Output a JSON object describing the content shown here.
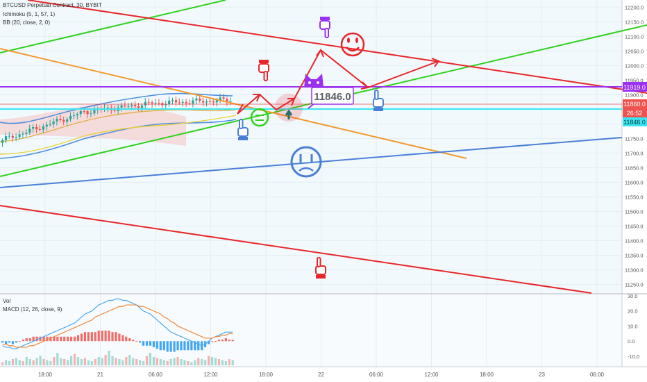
{
  "header": {
    "symbol_line": "BTCUSD Perpetual Contract, 30, BYBIT",
    "indicator_ichimoku": "Ichimoku (5, 1, 57, 1)",
    "indicator_bb": "BB (20, close, 2, 0)"
  },
  "sub_header": {
    "vol": "Vol",
    "macd": "MACD (12, 26, close, 9)"
  },
  "callout": {
    "value": "11846.0"
  },
  "price_tags": {
    "purple": "11919.0",
    "red": "11860.0",
    "timer": "26:52",
    "cyan": "11846.0"
  },
  "colors": {
    "background": "#ffffff",
    "plot_tint": "#f1f9fd",
    "up": "#26a69a",
    "down": "#ef5350",
    "red_line": "#e8262a",
    "green_line": "#2fd21c",
    "orange_line": "#f49a2e",
    "blue_line": "#4a7fd6",
    "purple_line": "#9a31f0",
    "cyan_line": "#39e6f2",
    "bb_band": "#4f8fe0",
    "cloud": "#f4d6d6",
    "macd_line": "#4aa8f0",
    "signal_line": "#f0883a"
  },
  "icons": [
    "pointing-hand-icon",
    "smiley-face-icon",
    "neutral-face-icon",
    "sad-face-icon",
    "cat-face-icon",
    "up-arrow-icon"
  ],
  "chart_data": [
    {
      "type": "line",
      "title": "BTCUSD Perpetual Contract, 30, BYBIT",
      "ylim": [
        11225,
        12215
      ],
      "y_ticks": [
        11250,
        11300,
        11350,
        11400,
        11450,
        11500,
        11550,
        11600,
        11650,
        11700,
        11750,
        11800,
        11850,
        11900,
        11950,
        12000,
        12050,
        12100,
        12150,
        12200
      ],
      "y_tick_labels": [
        "11250.0",
        "11300.0",
        "11350.0",
        "11400.0",
        "11450.0",
        "11500.0",
        "11550.0",
        "11600.0",
        "11650.0",
        "11700.0",
        "11750.0",
        "11800.0",
        "11850.0",
        "11900.0",
        "11950.0",
        "12000.0",
        "12050.0",
        "12100.0",
        "12150.0",
        "12200.0"
      ],
      "x_tick_labels": [
        "18:00",
        "21",
        "06:00",
        "12:00",
        "18:00",
        "22",
        "06:00",
        "12:00",
        "18:00",
        "23",
        "06:00"
      ],
      "horizontal_levels": [
        {
          "value": 11919.0,
          "color": "purple"
        },
        {
          "value": 11860.0,
          "color": "red"
        },
        {
          "value": 11846.0,
          "color": "cyan"
        }
      ],
      "grid": true,
      "legend": "top-left"
    },
    {
      "type": "bar",
      "title": "MACD (12, 26, close, 9)",
      "ylim": [
        -16,
        30
      ],
      "y_ticks": [
        -10,
        0,
        10,
        20,
        30
      ],
      "y_tick_labels": [
        "-10.0",
        "0.0",
        "10.0",
        "20.0",
        "30.0"
      ],
      "series": [
        {
          "name": "Vol",
          "values": [
            3,
            5,
            4,
            6,
            7,
            5,
            4,
            8,
            6,
            5,
            7,
            9,
            6,
            5,
            4,
            8,
            12,
            7,
            6,
            5,
            9,
            11,
            8,
            6,
            7,
            5,
            4,
            6,
            8,
            7,
            10,
            14,
            9,
            7,
            6,
            5,
            8,
            10,
            7,
            6,
            5,
            4,
            9,
            12,
            8,
            7,
            6,
            5,
            4,
            6,
            7,
            8,
            6,
            5,
            4,
            3,
            5,
            7,
            6,
            5,
            9,
            8,
            7,
            6,
            5,
            4,
            6,
            5
          ]
        },
        {
          "name": "MACD",
          "values": [
            -3,
            -4,
            -4,
            -5,
            -5,
            -4,
            -3,
            -2,
            -1,
            0,
            1,
            2,
            3,
            4,
            5,
            6,
            7,
            8,
            9,
            10,
            11,
            12,
            14,
            16,
            18,
            19,
            20,
            22,
            24,
            25,
            26,
            27,
            27,
            28,
            28,
            27,
            27,
            26,
            25,
            24,
            22,
            20,
            19,
            18,
            16,
            14,
            12,
            10,
            8,
            6,
            5,
            4,
            3,
            2,
            1,
            0,
            -1,
            -2,
            -3,
            -2,
            0,
            2,
            3,
            4,
            5,
            6,
            6,
            6
          ]
        },
        {
          "name": "Signal",
          "values": [
            -2,
            -2,
            -3,
            -3,
            -4,
            -4,
            -4,
            -4,
            -3,
            -3,
            -2,
            -1,
            0,
            1,
            2,
            3,
            4,
            5,
            6,
            7,
            8,
            9,
            10,
            11,
            12,
            13,
            14,
            16,
            17,
            18,
            19,
            20,
            21,
            22,
            23,
            23,
            24,
            24,
            24,
            24,
            23,
            23,
            22,
            21,
            20,
            19,
            18,
            16,
            15,
            13,
            12,
            10,
            9,
            8,
            7,
            6,
            5,
            4,
            3,
            2,
            2,
            2,
            3,
            3,
            4,
            4,
            5,
            5
          ]
        }
      ],
      "legend": "top-left"
    }
  ]
}
